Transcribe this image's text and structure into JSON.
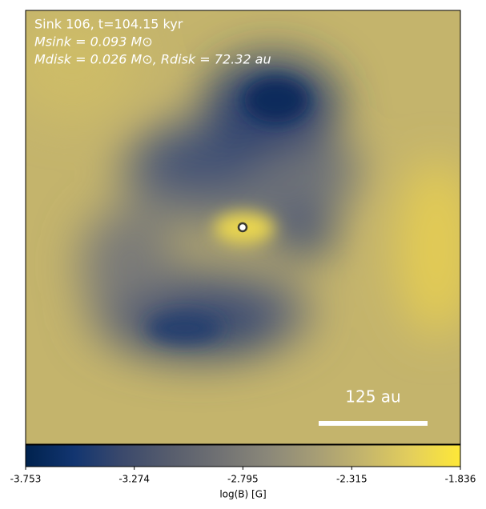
{
  "chart_data": {
    "type": "image",
    "annotations": [
      "Sink 106, t=104.15 kyr",
      "Msink = 0.093 M⊙",
      "Mdisk = 0.026 M⊙, Rdisk = 72.32 au"
    ],
    "scale_bar_label": "125 au",
    "colorbar": {
      "label": "log(B) [G]",
      "colormap": "cividis",
      "lim": [
        -3.753,
        -1.836
      ],
      "ticks": [
        -3.753,
        -3.274,
        -2.795,
        -2.315,
        -1.836
      ]
    }
  }
}
